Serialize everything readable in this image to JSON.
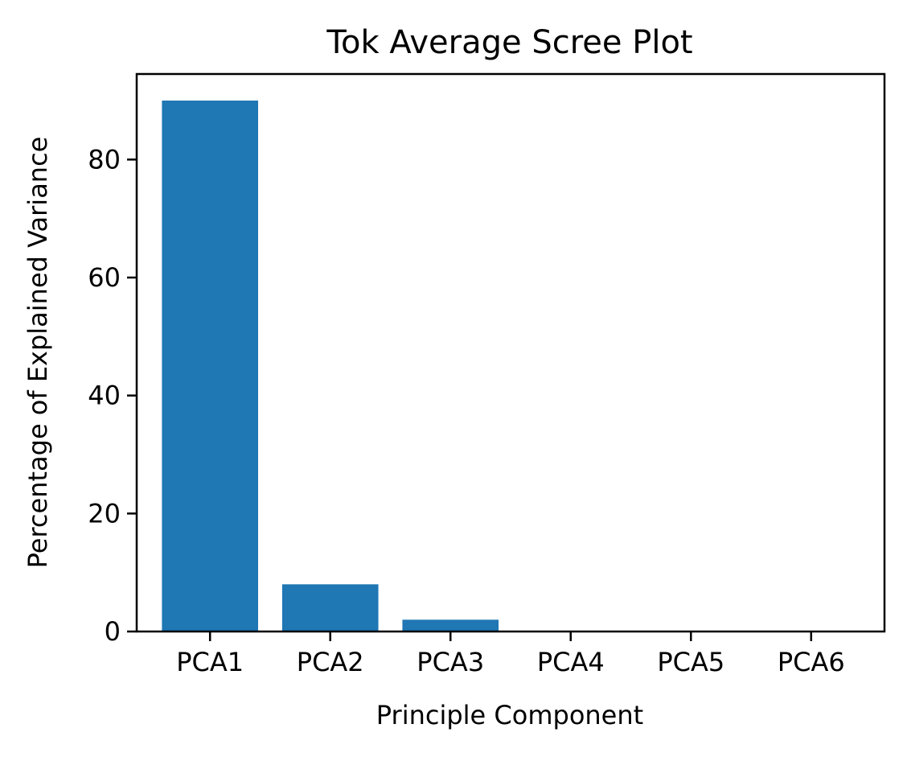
{
  "chart_data": {
    "type": "bar",
    "title": "Tok Average Scree Plot",
    "xlabel": "Principle Component",
    "ylabel": "Percentage of Explained Variance",
    "categories": [
      "PCA1",
      "PCA2",
      "PCA3",
      "PCA4",
      "PCA5",
      "PCA6"
    ],
    "values": [
      90,
      8,
      2,
      0,
      0,
      0
    ],
    "ylim": [
      0,
      94.5
    ],
    "yticks": [
      0,
      20,
      40,
      60,
      80
    ],
    "bar_color": "#1f77b4",
    "grid": false,
    "legend": "none"
  }
}
